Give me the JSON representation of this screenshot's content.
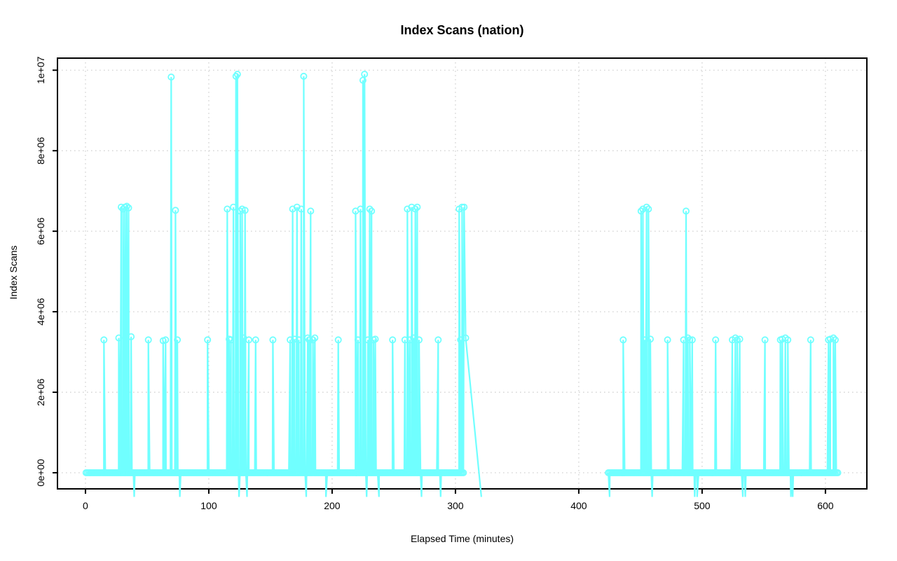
{
  "chart_data": {
    "type": "line",
    "title": "Index Scans (nation)",
    "xlabel": "Elapsed Time (minutes)",
    "ylabel": "Index Scans",
    "legend": "none",
    "grid": "dotted-lightgray-at-every-tick",
    "marker": "open-circle",
    "series_color": "#70FFFF",
    "grid_color": "#d2d2d2",
    "axis_color": "#000000",
    "xlim_usr": [
      -22.7,
      633.6
    ],
    "ylim_usr": [
      -400000,
      10300000
    ],
    "x_ticks": [
      {
        "label": "0",
        "value": 0
      },
      {
        "label": "100",
        "value": 100
      },
      {
        "label": "200",
        "value": 200
      },
      {
        "label": "300",
        "value": 300
      },
      {
        "label": "400",
        "value": 400
      },
      {
        "label": "500",
        "value": 500
      },
      {
        "label": "600",
        "value": 600
      }
    ],
    "y_ticks": [
      {
        "label": "0e+00",
        "value": 0
      },
      {
        "label": "2e+06",
        "value": 2000000
      },
      {
        "label": "4e+06",
        "value": 4000000
      },
      {
        "label": "6e+06",
        "value": 6000000
      },
      {
        "label": "8e+06",
        "value": 8000000
      },
      {
        "label": "1e+07",
        "value": 10000000
      }
    ],
    "baseline_value": 0,
    "baseline_segments": [
      [
        0.5,
        307.5,
        1.2
      ],
      [
        424,
        611,
        1.2
      ]
    ],
    "gap_break_threshold_minutes": 50,
    "spikes": [
      [
        15,
        3300000
      ],
      [
        27,
        3350000
      ],
      [
        29,
        6600000
      ],
      [
        30.5,
        6550000
      ],
      [
        32,
        6600000
      ],
      [
        33.5,
        6620000
      ],
      [
        35,
        6580000
      ],
      [
        37,
        3380000
      ],
      [
        39.5,
        -600000
      ],
      [
        51,
        3300000
      ],
      [
        63,
        3280000
      ],
      [
        65,
        3300000
      ],
      [
        69.5,
        9830000
      ],
      [
        73,
        6520000
      ],
      [
        74.5,
        3300000
      ],
      [
        76.5,
        -600000
      ],
      [
        99,
        3300000
      ],
      [
        115,
        6550000
      ],
      [
        116.5,
        3320000
      ],
      [
        118,
        3300000
      ],
      [
        120,
        6600000
      ],
      [
        122,
        9850000
      ],
      [
        123.2,
        9900000
      ],
      [
        124.5,
        -600000
      ],
      [
        125.5,
        6500000
      ],
      [
        127,
        6550000
      ],
      [
        128.2,
        3350000
      ],
      [
        129.4,
        6520000
      ],
      [
        131,
        -600000
      ],
      [
        132.5,
        3300000
      ],
      [
        138,
        3300000
      ],
      [
        152,
        3300000
      ],
      [
        166,
        3300000
      ],
      [
        168,
        6550000
      ],
      [
        169.5,
        3320000
      ],
      [
        171.5,
        6600000
      ],
      [
        173,
        3300000
      ],
      [
        175,
        6550000
      ],
      [
        177,
        9850000
      ],
      [
        179,
        -600000
      ],
      [
        180.2,
        3350000
      ],
      [
        181.4,
        3300000
      ],
      [
        182.6,
        6500000
      ],
      [
        184.5,
        3300000
      ],
      [
        186,
        3350000
      ],
      [
        195,
        -600000
      ],
      [
        205,
        3300000
      ],
      [
        219,
        6500000
      ],
      [
        221,
        3300000
      ],
      [
        223,
        6550000
      ],
      [
        225,
        9750000
      ],
      [
        226.3,
        9900000
      ],
      [
        228,
        -600000
      ],
      [
        229,
        3300000
      ],
      [
        230.5,
        6550000
      ],
      [
        232,
        6500000
      ],
      [
        233.5,
        3300000
      ],
      [
        235,
        3320000
      ],
      [
        238,
        -600000
      ],
      [
        249,
        3300000
      ],
      [
        259,
        3300000
      ],
      [
        261,
        6550000
      ],
      [
        263,
        3300000
      ],
      [
        264.5,
        6600000
      ],
      [
        266,
        3350000
      ],
      [
        267.5,
        6550000
      ],
      [
        269,
        6600000
      ],
      [
        270.5,
        3300000
      ],
      [
        272.5,
        -600000
      ],
      [
        286,
        3300000
      ],
      [
        288,
        -600000
      ],
      [
        303,
        6550000
      ],
      [
        304.2,
        3300000
      ],
      [
        305.4,
        6600000
      ],
      [
        307,
        6600000
      ],
      [
        308.3,
        3350000
      ],
      [
        321,
        -600000
      ],
      [
        425,
        -600000
      ],
      [
        436,
        3300000
      ],
      [
        450.5,
        6500000
      ],
      [
        452,
        6550000
      ],
      [
        453.5,
        3300000
      ],
      [
        455,
        6600000
      ],
      [
        456.5,
        6550000
      ],
      [
        458,
        3320000
      ],
      [
        459.5,
        -600000
      ],
      [
        472,
        3300000
      ],
      [
        485,
        3300000
      ],
      [
        487,
        6500000
      ],
      [
        488.5,
        3350000
      ],
      [
        490,
        3300000
      ],
      [
        492,
        3300000
      ],
      [
        494,
        -600000
      ],
      [
        496,
        -600000
      ],
      [
        511,
        3300000
      ],
      [
        524.5,
        3300000
      ],
      [
        527,
        3350000
      ],
      [
        528.5,
        3300000
      ],
      [
        530.5,
        3320000
      ],
      [
        533,
        -600000
      ],
      [
        535,
        -600000
      ],
      [
        551,
        3300000
      ],
      [
        563.5,
        3300000
      ],
      [
        565,
        3320000
      ],
      [
        567.5,
        3350000
      ],
      [
        569.5,
        3300000
      ],
      [
        572,
        -600000
      ],
      [
        573.5,
        -600000
      ],
      [
        588,
        3300000
      ],
      [
        602.5,
        3300000
      ],
      [
        604,
        3320000
      ],
      [
        606.5,
        3350000
      ],
      [
        608,
        3300000
      ]
    ]
  }
}
